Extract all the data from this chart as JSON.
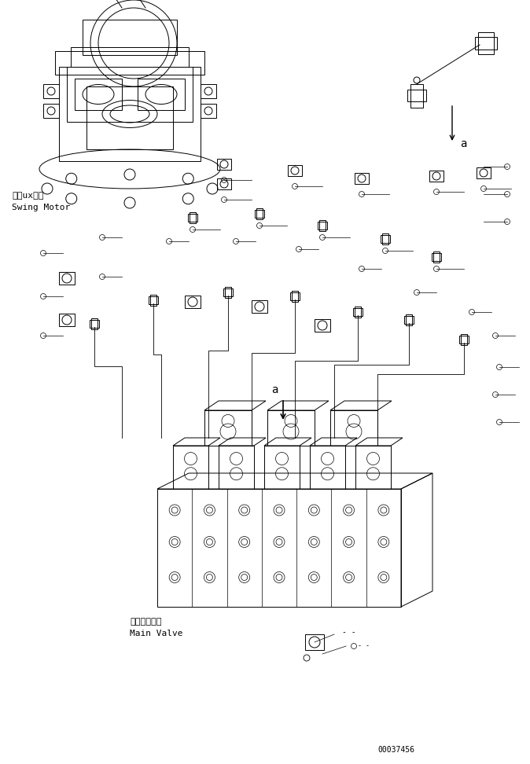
{
  "background_color": "#ffffff",
  "line_color": "#000000",
  "fig_width": 6.74,
  "fig_height": 9.72,
  "dpi": 100,
  "label_swing_motor_jp": "旋回uxータ",
  "label_swing_motor_en": "Swing Motor",
  "label_main_valve_jp": "メインバルブ",
  "label_main_valve_en": "Main Valve",
  "label_a": "a",
  "part_number": "00037456"
}
